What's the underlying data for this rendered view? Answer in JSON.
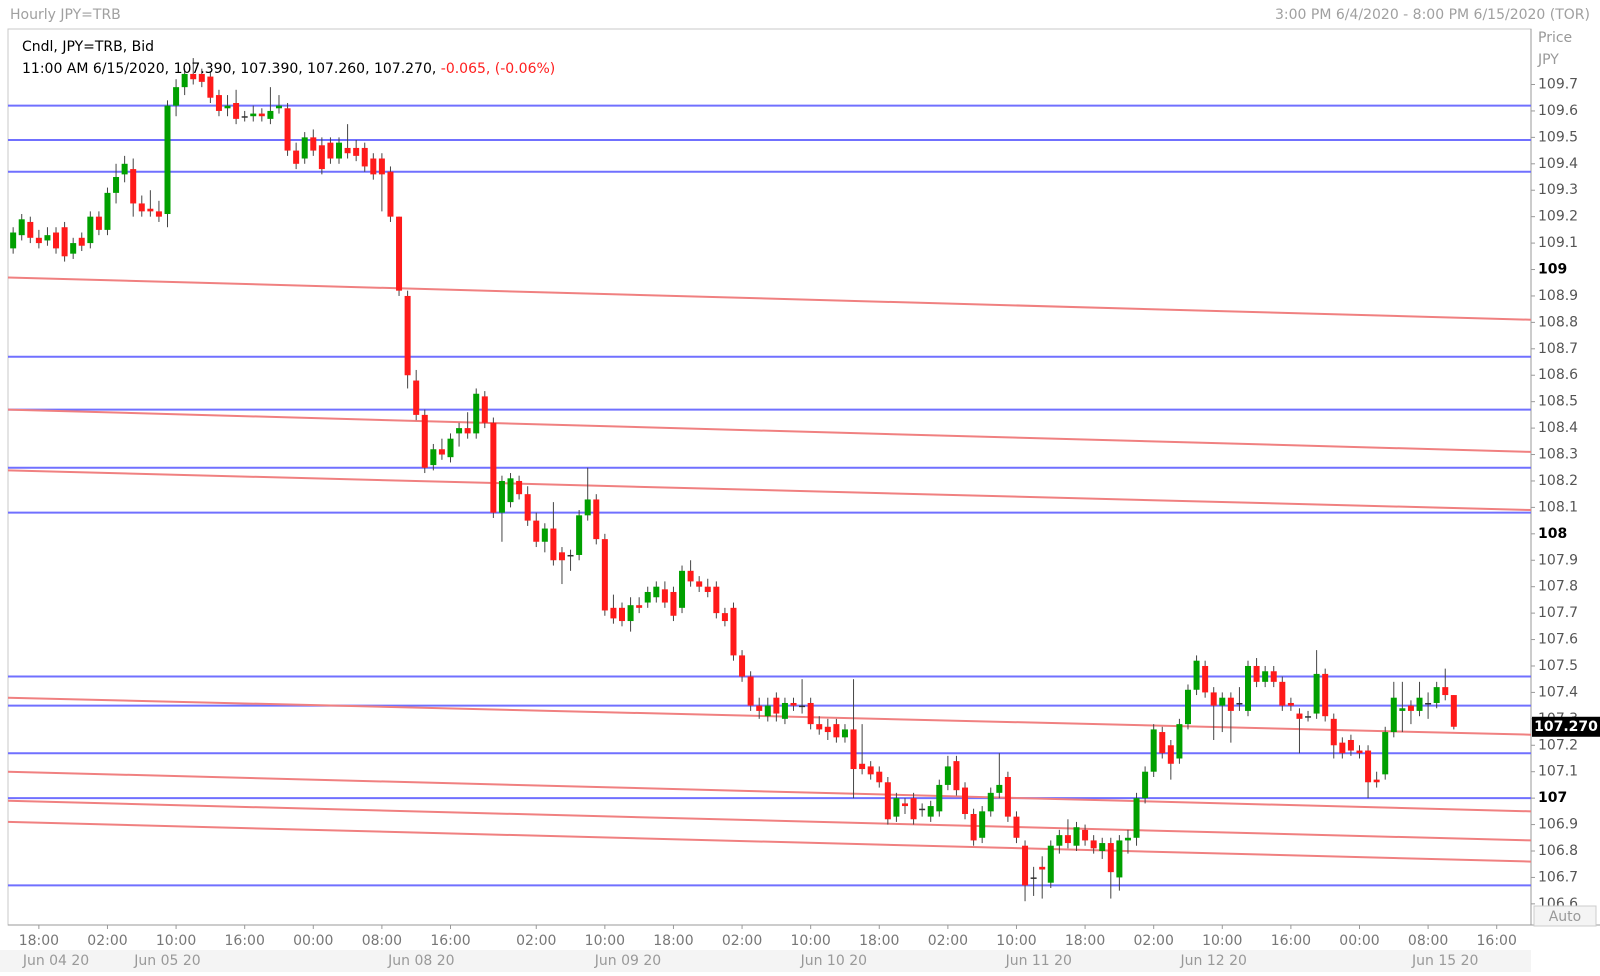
{
  "chart_data": {
    "type": "candlestick",
    "title": "Hourly JPY=TRB",
    "range_text": "3:00 PM 6/4/2020 - 8:00 PM 6/15/2020 (TOR)",
    "info_title": "Cndl, JPY=TRB, Bid",
    "info_ohlc": "11:00 AM 6/15/2020, 107.390, 107.390, 107.260, 107.270,",
    "info_change": "-0.065, (-0.06%)",
    "axis_title": "Price",
    "axis_unit": "JPY",
    "auto_button": "Auto",
    "last_price": {
      "value": 107.27,
      "label": "107.270"
    },
    "up_color": "#00a000",
    "down_color": "#ff1a1a",
    "hline_color": "#7070ff",
    "trendline_color": "#f08080",
    "ylim": [
      106.52,
      109.91
    ],
    "xlim": [
      -0.6,
      177
    ],
    "yticks": [
      106.6,
      106.7,
      106.8,
      106.9,
      107,
      107.1,
      107.2,
      107.3,
      107.4,
      107.5,
      107.6,
      107.7,
      107.8,
      107.9,
      108,
      108.1,
      108.2,
      108.3,
      108.4,
      108.5,
      108.6,
      108.7,
      108.8,
      108.9,
      109,
      109.1,
      109.2,
      109.3,
      109.4,
      109.5,
      109.6,
      109.7
    ],
    "xticks": [
      {
        "value": 3,
        "label": "18:00"
      },
      {
        "value": 11,
        "label": "02:00"
      },
      {
        "value": 19,
        "label": "10:00"
      },
      {
        "value": 27,
        "label": "16:00"
      },
      {
        "value": 35,
        "label": "00:00"
      },
      {
        "value": 43,
        "label": "08:00"
      },
      {
        "value": 51,
        "label": "16:00"
      },
      {
        "value": 61,
        "label": "02:00"
      },
      {
        "value": 69,
        "label": "10:00"
      },
      {
        "value": 77,
        "label": "18:00"
      },
      {
        "value": 85,
        "label": "02:00"
      },
      {
        "value": 93,
        "label": "10:00"
      },
      {
        "value": 101,
        "label": "18:00"
      },
      {
        "value": 109,
        "label": "02:00"
      },
      {
        "value": 117,
        "label": "10:00"
      },
      {
        "value": 125,
        "label": "18:00"
      },
      {
        "value": 133,
        "label": "02:00"
      },
      {
        "value": 141,
        "label": "10:00"
      },
      {
        "value": 149,
        "label": "16:00"
      },
      {
        "value": 157,
        "label": "00:00"
      },
      {
        "value": 165,
        "label": "08:00"
      },
      {
        "value": 173,
        "label": "16:00"
      }
    ],
    "dates": [
      {
        "value": 5,
        "label": "Jun 04 20"
      },
      {
        "value": 18,
        "label": "Jun 05 20"
      },
      {
        "value": 47.6,
        "label": "Jun 08 20"
      },
      {
        "value": 71.7,
        "label": "Jun 09 20"
      },
      {
        "value": 95.7,
        "label": "Jun 10 20"
      },
      {
        "value": 119.6,
        "label": "Jun 11 20"
      },
      {
        "value": 140,
        "label": "Jun 12 20"
      },
      {
        "value": 167,
        "label": "Jun 15 20"
      }
    ],
    "hlines": [
      109.62,
      109.49,
      109.37,
      108.67,
      108.47,
      108.25,
      108.08,
      107.46,
      107.35,
      107.17,
      107.0,
      106.67
    ],
    "trendlines": [
      [
        108.97,
        108.81
      ],
      [
        108.47,
        108.31
      ],
      [
        108.24,
        108.09
      ],
      [
        107.38,
        107.24
      ],
      [
        107.1,
        106.95
      ],
      [
        106.99,
        106.84
      ],
      [
        106.91,
        106.76
      ]
    ],
    "candles": [
      [
        109.08,
        109.16,
        109.06,
        109.14
      ],
      [
        109.13,
        109.21,
        109.11,
        109.19
      ],
      [
        109.18,
        109.2,
        109.1,
        109.12
      ],
      [
        109.12,
        109.15,
        109.08,
        109.1
      ],
      [
        109.11,
        109.16,
        109.09,
        109.13
      ],
      [
        109.14,
        109.16,
        109.06,
        109.08
      ],
      [
        109.16,
        109.18,
        109.03,
        109.05
      ],
      [
        109.06,
        109.12,
        109.04,
        109.1
      ],
      [
        109.12,
        109.14,
        109.07,
        109.09
      ],
      [
        109.1,
        109.22,
        109.08,
        109.2
      ],
      [
        109.2,
        109.22,
        109.13,
        109.15
      ],
      [
        109.15,
        109.31,
        109.13,
        109.29
      ],
      [
        109.29,
        109.4,
        109.25,
        109.35
      ],
      [
        109.36,
        109.43,
        109.33,
        109.4
      ],
      [
        109.38,
        109.42,
        109.2,
        109.25
      ],
      [
        109.25,
        109.28,
        109.2,
        109.22
      ],
      [
        109.23,
        109.3,
        109.2,
        109.22
      ],
      [
        109.22,
        109.26,
        109.18,
        109.2
      ],
      [
        109.21,
        109.64,
        109.16,
        109.62
      ],
      [
        109.62,
        109.72,
        109.58,
        109.69
      ],
      [
        109.69,
        109.76,
        109.66,
        109.74
      ],
      [
        109.74,
        109.8,
        109.7,
        109.72
      ],
      [
        109.74,
        109.76,
        109.69,
        109.71
      ],
      [
        109.73,
        109.75,
        109.63,
        109.65
      ],
      [
        109.66,
        109.68,
        109.58,
        109.6
      ],
      [
        109.61,
        109.66,
        109.58,
        109.62
      ],
      [
        109.63,
        109.68,
        109.55,
        109.57
      ],
      [
        109.58,
        109.6,
        109.56,
        109.58
      ],
      [
        109.58,
        109.62,
        109.56,
        109.59
      ],
      [
        109.59,
        109.61,
        109.56,
        109.58
      ],
      [
        109.57,
        109.69,
        109.55,
        109.6
      ],
      [
        109.61,
        109.66,
        109.59,
        109.62
      ],
      [
        109.61,
        109.63,
        109.43,
        109.45
      ],
      [
        109.45,
        109.48,
        109.38,
        109.4
      ],
      [
        109.42,
        109.52,
        109.4,
        109.5
      ],
      [
        109.5,
        109.53,
        109.43,
        109.45
      ],
      [
        109.47,
        109.5,
        109.36,
        109.38
      ],
      [
        109.48,
        109.5,
        109.4,
        109.42
      ],
      [
        109.42,
        109.5,
        109.4,
        109.48
      ],
      [
        109.46,
        109.55,
        109.42,
        109.44
      ],
      [
        109.46,
        109.49,
        109.41,
        109.43
      ],
      [
        109.46,
        109.48,
        109.37,
        109.39
      ],
      [
        109.42,
        109.44,
        109.34,
        109.36
      ],
      [
        109.42,
        109.44,
        109.22,
        109.36
      ],
      [
        109.37,
        109.39,
        109.18,
        109.2
      ],
      [
        109.2,
        109.2,
        108.9,
        108.92
      ],
      [
        108.9,
        108.92,
        108.55,
        108.6
      ],
      [
        108.58,
        108.62,
        108.43,
        108.45
      ],
      [
        108.45,
        108.47,
        108.23,
        108.25
      ],
      [
        108.26,
        108.34,
        108.24,
        108.32
      ],
      [
        108.32,
        108.36,
        108.28,
        108.3
      ],
      [
        108.29,
        108.38,
        108.27,
        108.36
      ],
      [
        108.38,
        108.42,
        108.33,
        108.4
      ],
      [
        108.4,
        108.46,
        108.36,
        108.38
      ],
      [
        108.38,
        108.55,
        108.36,
        108.53
      ],
      [
        108.52,
        108.54,
        108.4,
        108.42
      ],
      [
        108.42,
        108.44,
        108.06,
        108.08
      ],
      [
        108.08,
        108.22,
        107.97,
        108.2
      ],
      [
        108.12,
        108.23,
        108.1,
        108.21
      ],
      [
        108.2,
        108.22,
        108.13,
        108.15
      ],
      [
        108.15,
        108.18,
        108.03,
        108.05
      ],
      [
        108.05,
        108.08,
        107.95,
        107.97
      ],
      [
        107.97,
        108.04,
        107.93,
        108.02
      ],
      [
        108.02,
        108.12,
        107.88,
        107.9
      ],
      [
        107.93,
        107.95,
        107.81,
        107.9
      ],
      [
        107.92,
        107.94,
        107.86,
        107.92
      ],
      [
        107.92,
        108.09,
        107.9,
        108.07
      ],
      [
        108.07,
        108.25,
        108.05,
        108.13
      ],
      [
        108.13,
        108.15,
        107.96,
        107.98
      ],
      [
        107.98,
        108.0,
        107.69,
        107.71
      ],
      [
        107.72,
        107.77,
        107.66,
        107.68
      ],
      [
        107.72,
        107.74,
        107.65,
        107.67
      ],
      [
        107.67,
        107.76,
        107.63,
        107.73
      ],
      [
        107.73,
        107.76,
        107.7,
        107.72
      ],
      [
        107.74,
        107.8,
        107.72,
        107.78
      ],
      [
        107.76,
        107.82,
        107.74,
        107.8
      ],
      [
        107.79,
        107.82,
        107.72,
        107.74
      ],
      [
        107.78,
        107.8,
        107.67,
        107.69
      ],
      [
        107.72,
        107.88,
        107.7,
        107.86
      ],
      [
        107.86,
        107.9,
        107.8,
        107.82
      ],
      [
        107.82,
        107.84,
        107.78,
        107.8
      ],
      [
        107.8,
        107.83,
        107.76,
        107.78
      ],
      [
        107.8,
        107.82,
        107.68,
        107.7
      ],
      [
        107.7,
        107.72,
        107.65,
        107.67
      ],
      [
        107.72,
        107.74,
        107.52,
        107.54
      ],
      [
        107.54,
        107.56,
        107.44,
        107.46
      ],
      [
        107.46,
        107.48,
        107.33,
        107.35
      ],
      [
        107.35,
        107.38,
        107.3,
        107.33
      ],
      [
        107.31,
        107.38,
        107.29,
        107.35
      ],
      [
        107.38,
        107.4,
        107.29,
        107.32
      ],
      [
        107.3,
        107.38,
        107.28,
        107.36
      ],
      [
        107.36,
        107.38,
        107.33,
        107.35
      ],
      [
        107.35,
        107.45,
        107.32,
        107.35
      ],
      [
        107.36,
        107.38,
        107.26,
        107.28
      ],
      [
        107.28,
        107.31,
        107.24,
        107.26
      ],
      [
        107.27,
        107.3,
        107.22,
        107.25
      ],
      [
        107.28,
        107.3,
        107.21,
        107.23
      ],
      [
        107.23,
        107.28,
        107.21,
        107.26
      ],
      [
        107.26,
        107.45,
        107.0,
        107.11
      ],
      [
        107.13,
        107.28,
        107.09,
        107.11
      ],
      [
        107.12,
        107.14,
        107.07,
        107.09
      ],
      [
        107.1,
        107.12,
        107.04,
        107.06
      ],
      [
        107.06,
        107.08,
        106.9,
        106.92
      ],
      [
        106.93,
        107.02,
        106.91,
        107.0
      ],
      [
        106.98,
        107.0,
        106.94,
        106.97
      ],
      [
        107.0,
        107.02,
        106.9,
        106.92
      ],
      [
        106.96,
        106.98,
        106.93,
        106.96
      ],
      [
        106.93,
        106.99,
        106.91,
        106.97
      ],
      [
        106.95,
        107.07,
        106.93,
        107.05
      ],
      [
        107.05,
        107.16,
        107.03,
        107.12
      ],
      [
        107.14,
        107.16,
        107.01,
        107.03
      ],
      [
        107.04,
        107.06,
        106.92,
        106.94
      ],
      [
        106.94,
        106.96,
        106.82,
        106.84
      ],
      [
        106.85,
        106.97,
        106.83,
        106.95
      ],
      [
        106.95,
        107.04,
        106.93,
        107.02
      ],
      [
        107.02,
        107.17,
        107.0,
        107.05
      ],
      [
        107.08,
        107.1,
        106.91,
        106.93
      ],
      [
        106.93,
        106.95,
        106.83,
        106.85
      ],
      [
        106.82,
        106.84,
        106.61,
        106.67
      ],
      [
        106.7,
        106.74,
        106.63,
        106.7
      ],
      [
        106.74,
        106.78,
        106.62,
        106.73
      ],
      [
        106.68,
        106.84,
        106.66,
        106.82
      ],
      [
        106.82,
        106.88,
        106.79,
        106.86
      ],
      [
        106.86,
        106.92,
        106.81,
        106.83
      ],
      [
        106.82,
        106.91,
        106.8,
        106.89
      ],
      [
        106.88,
        106.9,
        106.82,
        106.84
      ],
      [
        106.84,
        106.86,
        106.79,
        106.81
      ],
      [
        106.8,
        106.85,
        106.77,
        106.83
      ],
      [
        106.83,
        106.85,
        106.62,
        106.72
      ],
      [
        106.7,
        106.86,
        106.65,
        106.84
      ],
      [
        106.84,
        106.88,
        106.79,
        106.85
      ],
      [
        106.85,
        107.02,
        106.82,
        107.0
      ],
      [
        107.0,
        107.12,
        106.98,
        107.1
      ],
      [
        107.1,
        107.28,
        107.08,
        107.26
      ],
      [
        107.25,
        107.27,
        107.15,
        107.17
      ],
      [
        107.2,
        107.22,
        107.07,
        107.13
      ],
      [
        107.15,
        107.3,
        107.13,
        107.28
      ],
      [
        107.28,
        107.43,
        107.26,
        107.41
      ],
      [
        107.41,
        107.54,
        107.39,
        107.52
      ],
      [
        107.5,
        107.52,
        107.38,
        107.4
      ],
      [
        107.4,
        107.42,
        107.22,
        107.35
      ],
      [
        107.35,
        107.4,
        107.25,
        107.38
      ],
      [
        107.38,
        107.4,
        107.21,
        107.33
      ],
      [
        107.36,
        107.42,
        107.33,
        107.36
      ],
      [
        107.33,
        107.52,
        107.31,
        107.5
      ],
      [
        107.5,
        107.53,
        107.42,
        107.44
      ],
      [
        107.44,
        107.5,
        107.42,
        107.48
      ],
      [
        107.48,
        107.5,
        107.42,
        107.44
      ],
      [
        107.44,
        107.46,
        107.33,
        107.35
      ],
      [
        107.36,
        107.38,
        107.33,
        107.35
      ],
      [
        107.32,
        107.34,
        107.17,
        107.3
      ],
      [
        107.31,
        107.33,
        107.29,
        107.31
      ],
      [
        107.32,
        107.56,
        107.3,
        107.47
      ],
      [
        107.47,
        107.49,
        107.29,
        107.31
      ],
      [
        107.3,
        107.32,
        107.15,
        107.2
      ],
      [
        107.21,
        107.23,
        107.15,
        107.17
      ],
      [
        107.22,
        107.24,
        107.16,
        107.18
      ],
      [
        107.18,
        107.2,
        107.15,
        107.17
      ],
      [
        107.18,
        107.2,
        107.0,
        107.06
      ],
      [
        107.07,
        107.1,
        107.04,
        107.06
      ],
      [
        107.09,
        107.27,
        107.07,
        107.25
      ],
      [
        107.25,
        107.44,
        107.23,
        107.38
      ],
      [
        107.33,
        107.44,
        107.25,
        107.34
      ],
      [
        107.35,
        107.37,
        107.28,
        107.33
      ],
      [
        107.33,
        107.44,
        107.31,
        107.38
      ],
      [
        107.36,
        107.4,
        107.3,
        107.36
      ],
      [
        107.36,
        107.44,
        107.34,
        107.42
      ],
      [
        107.42,
        107.49,
        107.37,
        107.39
      ],
      [
        107.39,
        107.39,
        107.26,
        107.27
      ]
    ]
  }
}
